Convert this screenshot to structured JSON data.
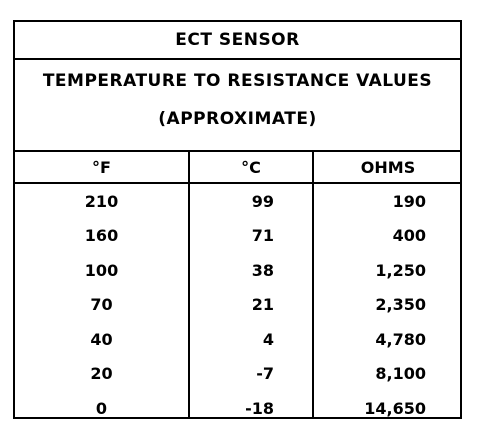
{
  "table": {
    "title": "ECT SENSOR",
    "subtitle_line1": "TEMPERATURE TO RESISTANCE VALUES",
    "subtitle_line2": "(APPROXIMATE)",
    "columns": [
      "°F",
      "°C",
      "OHMS"
    ],
    "rows": [
      [
        "210",
        "99",
        "190"
      ],
      [
        "160",
        "71",
        "400"
      ],
      [
        "100",
        "38",
        "1,250"
      ],
      [
        "70",
        "21",
        "2,350"
      ],
      [
        "40",
        "4",
        "4,780"
      ],
      [
        "20",
        "-7",
        "8,100"
      ],
      [
        "0",
        "-18",
        "14,650"
      ]
    ]
  }
}
